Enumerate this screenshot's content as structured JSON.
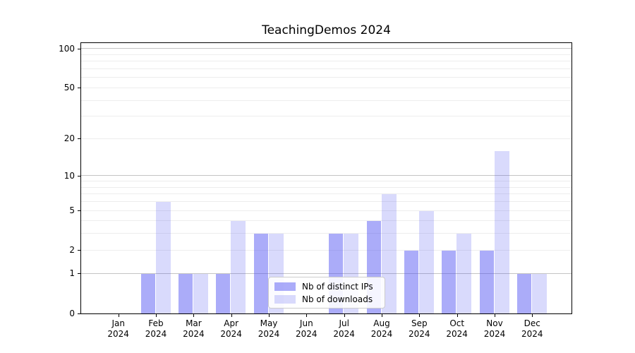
{
  "chart_data": {
    "type": "bar",
    "title": "TeachingDemos 2024",
    "categories": [
      "Jan",
      "Feb",
      "Mar",
      "Apr",
      "May",
      "Jun",
      "Jul",
      "Aug",
      "Sep",
      "Oct",
      "Nov",
      "Dec"
    ],
    "category_year": "2024",
    "series": [
      {
        "name": "Nb of distinct IPs",
        "color": "rgba(77,79,242,0.47)",
        "values": [
          0,
          1,
          1,
          1,
          3,
          0,
          3,
          4,
          2,
          2,
          2,
          1
        ]
      },
      {
        "name": "Nb of downloads",
        "color": "rgba(77,79,242,0.21)",
        "values": [
          0,
          6,
          1,
          4,
          3,
          0,
          3,
          7,
          5,
          3,
          16,
          1
        ]
      }
    ],
    "yscale": "log1p",
    "ytick_labels": [
      0,
      1,
      2,
      5,
      10,
      20,
      50,
      100
    ],
    "major_gridlines": [
      1,
      10,
      100
    ],
    "minor_gridlines": [
      2,
      3,
      4,
      5,
      6,
      7,
      8,
      9,
      20,
      30,
      40,
      50,
      60,
      70,
      80,
      90
    ],
    "grid": "horizontal-only",
    "legend_position": "lower-center",
    "colors": {
      "major_grid": "#c4c4c4",
      "minor_grid": "#ededed",
      "axis": "#000000",
      "background": "#ffffff",
      "legend_border": "#cccccc"
    }
  }
}
